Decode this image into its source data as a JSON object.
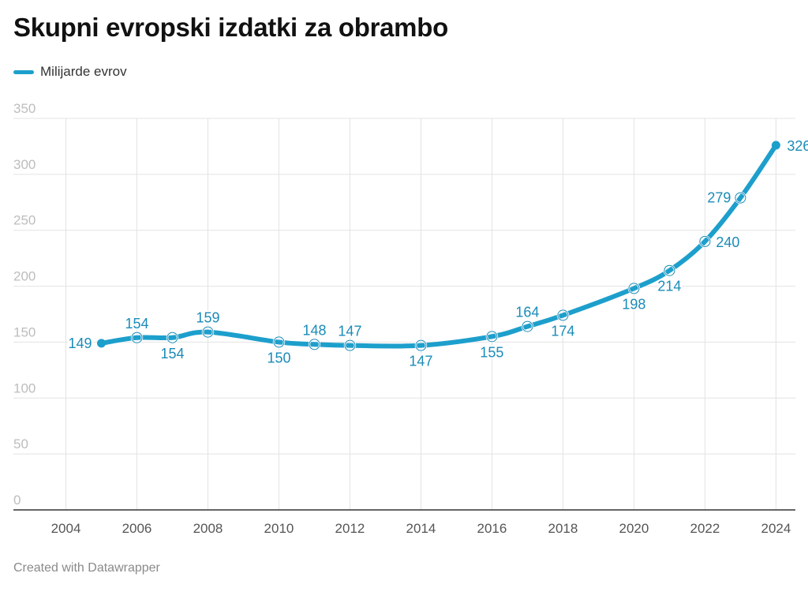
{
  "title": "Skupni evropski izdatki za obrambo",
  "footer": "Created with Datawrapper",
  "colors": {
    "series": "#1d9fcc",
    "label": "#1a8bb8",
    "grid": "#e3e3e3",
    "axis": "#333333",
    "tick": "#bdbdbd",
    "xtick": "#555555"
  },
  "chart_data": {
    "type": "line",
    "title": "Skupni evropski izdatki za obrambo",
    "xlabel": "",
    "ylabel": "",
    "series": [
      {
        "name": "Milijarde evrov",
        "x": [
          2005,
          2006,
          2007,
          2008,
          2010,
          2011,
          2012,
          2014,
          2016,
          2017,
          2018,
          2020,
          2021,
          2022,
          2023,
          2024
        ],
        "values": [
          149,
          154,
          154,
          159,
          150,
          148,
          147,
          147,
          155,
          164,
          174,
          198,
          214,
          240,
          279,
          326
        ]
      }
    ],
    "xlim": [
      2003,
      2025
    ],
    "ylim": [
      0,
      350
    ],
    "xticks": [
      "2004",
      "2006",
      "2008",
      "2010",
      "2012",
      "2014",
      "2016",
      "2018",
      "2020",
      "2022",
      "2024"
    ],
    "yticks": [
      "0",
      "50",
      "100",
      "150",
      "200",
      "250",
      "300",
      "350"
    ],
    "grid": true,
    "legend": "top-left"
  }
}
